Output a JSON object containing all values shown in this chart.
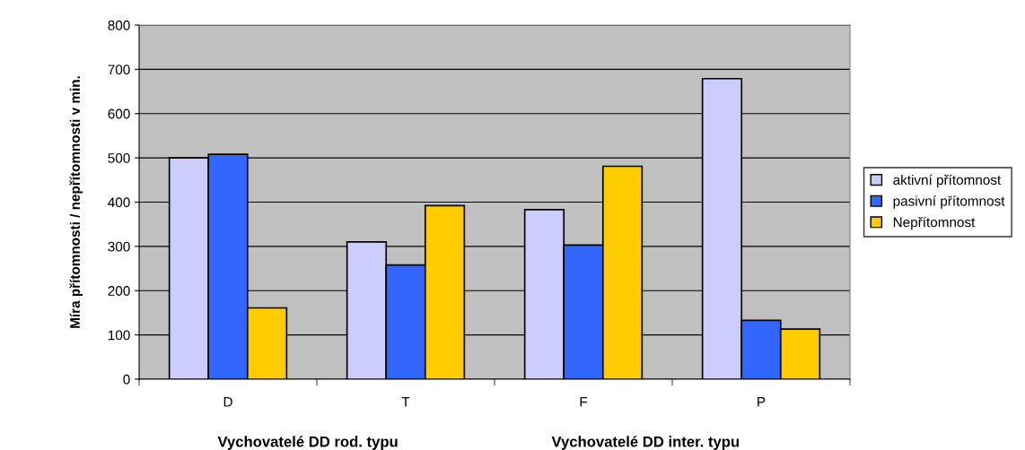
{
  "chart_data": {
    "type": "bar",
    "ylabel": "Míra přítomnosti / nepřítomnosti v min.",
    "categories": [
      "D",
      "T",
      "F",
      "P"
    ],
    "series": [
      {
        "name": "aktivní přítomnost",
        "color": "#ccccff",
        "values": [
          500,
          310,
          383,
          679
        ]
      },
      {
        "name": "pasivní přítomnost",
        "color": "#3366ff",
        "values": [
          508,
          258,
          303,
          133
        ]
      },
      {
        "name": "Nepřítomnost",
        "color": "#ffcc00",
        "values": [
          161,
          392,
          481,
          113
        ]
      }
    ],
    "ylim": [
      0,
      800
    ],
    "yticks": [
      0,
      100,
      200,
      300,
      400,
      500,
      600,
      700,
      800
    ],
    "grid": "y",
    "legend": "right",
    "annotations": [
      "Vychovatelé DD rod. typu",
      "Vychovatelé DD inter. typu"
    ]
  }
}
